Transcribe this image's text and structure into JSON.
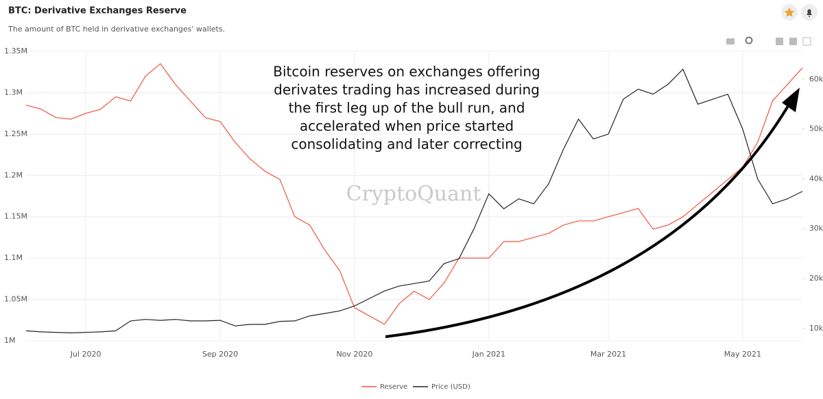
{
  "chart_data": {
    "type": "line",
    "title": "BTC: Derivative Exchanges Reserve",
    "subtitle": "The amount of BTC held in derivative exchanges' wallets.",
    "watermark": "CryptoQuant",
    "annotation": [
      "Bitcoin reserves on exchanges offering",
      "derivates trading has increased during",
      "the first leg up of the bull run, and",
      "accelerated when price started",
      "consolidating and later correcting"
    ],
    "categories": [
      null,
      null,
      null,
      null,
      "Jul 2020",
      null,
      null,
      null,
      null,
      null,
      null,
      null,
      null,
      "Sep 2020",
      null,
      null,
      null,
      null,
      null,
      null,
      null,
      null,
      "Nov 2020",
      null,
      null,
      null,
      null,
      null,
      null,
      null,
      null,
      "Jan 2021",
      null,
      null,
      null,
      null,
      null,
      null,
      null,
      "Mar 2021",
      null,
      null,
      null,
      null,
      null,
      null,
      null,
      null,
      "May 2021",
      null,
      null,
      null,
      null
    ],
    "series": [
      {
        "name": "Reserve",
        "color": "#f0533f",
        "values": [
          1285000,
          1280000,
          1270000,
          1268000,
          1275000,
          1280000,
          1295000,
          1290000,
          1320000,
          1335000,
          1310000,
          1290000,
          1270000,
          1265000,
          1240000,
          1220000,
          1205000,
          1195000,
          1150000,
          1140000,
          1110000,
          1085000,
          1040000,
          1030000,
          1020000,
          1045000,
          1060000,
          1050000,
          1070000,
          1100000,
          1100000,
          1100000,
          1120000,
          1120000,
          1125000,
          1130000,
          1140000,
          1145000,
          1145000,
          1150000,
          1155000,
          1160000,
          1135000,
          1140000,
          1150000,
          1165000,
          1180000,
          1195000,
          1210000,
          1240000,
          1290000,
          1310000,
          1330000
        ]
      },
      {
        "name": "Price (USD)",
        "color": "#222222",
        "axis": "y2",
        "values": [
          9500,
          9300,
          9200,
          9100,
          9200,
          9300,
          9500,
          11500,
          11800,
          11600,
          11800,
          11500,
          11500,
          11600,
          10500,
          10800,
          10800,
          11400,
          11500,
          12500,
          13000,
          13500,
          14500,
          16000,
          17500,
          18500,
          19000,
          19500,
          23000,
          24000,
          30000,
          37000,
          34000,
          36000,
          35000,
          39000,
          46000,
          52000,
          48000,
          49000,
          56000,
          58000,
          57000,
          59000,
          62000,
          55000,
          56000,
          57000,
          50000,
          40000,
          35000,
          36000,
          37500
        ]
      }
    ],
    "ylim": [
      1000000,
      1350000
    ],
    "yticks": [
      {
        "value": 1000000,
        "label": "1M"
      },
      {
        "value": 1050000,
        "label": "1.05M"
      },
      {
        "value": 1100000,
        "label": "1.1M"
      },
      {
        "value": 1150000,
        "label": "1.15M"
      },
      {
        "value": 1200000,
        "label": "1.2M"
      },
      {
        "value": 1250000,
        "label": "1.25M"
      },
      {
        "value": 1300000,
        "label": "1.3M"
      },
      {
        "value": 1350000,
        "label": "1.35M"
      }
    ],
    "y2lim": [
      7500,
      65600
    ],
    "y2ticks": [
      {
        "value": 10000,
        "label": "10k"
      },
      {
        "value": 20000,
        "label": "20k"
      },
      {
        "value": 30000,
        "label": "30k"
      },
      {
        "value": 40000,
        "label": "40k"
      },
      {
        "value": 50000,
        "label": "50k"
      },
      {
        "value": 60000,
        "label": "60k"
      }
    ],
    "grid": true
  }
}
